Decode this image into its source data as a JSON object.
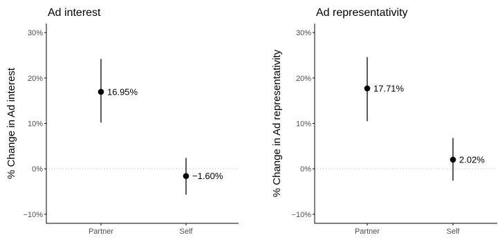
{
  "chart_data": [
    {
      "type": "scatter",
      "title": "Ad interest",
      "xlabel": "",
      "ylabel": "% Change in Ad interest",
      "categories": [
        "Partner",
        "Self"
      ],
      "values": [
        16.95,
        -1.6
      ],
      "lower": [
        10.2,
        -5.7
      ],
      "upper": [
        24.2,
        2.4
      ],
      "point_labels": [
        "16.95%",
        "−1.60%"
      ],
      "ylim": [
        -12,
        32
      ],
      "yticks": [
        -10,
        0,
        10,
        20,
        30
      ],
      "ytick_labels": [
        "−10%",
        "0%",
        "10%",
        "20%",
        "30%"
      ],
      "reference_line": 0,
      "grid": false
    },
    {
      "type": "scatter",
      "title": "Ad representativity",
      "xlabel": "",
      "ylabel": "% Change in Ad representativity",
      "categories": [
        "Partner",
        "Self"
      ],
      "values": [
        17.71,
        2.02
      ],
      "lower": [
        10.5,
        -2.6
      ],
      "upper": [
        24.6,
        6.8
      ],
      "point_labels": [
        "17.71%",
        "2.02%"
      ],
      "ylim": [
        -12,
        32
      ],
      "yticks": [
        -10,
        0,
        10,
        20,
        30
      ],
      "ytick_labels": [
        "−10%",
        "0%",
        "10%",
        "20%",
        "30%"
      ],
      "reference_line": 0,
      "grid": false
    }
  ],
  "colors": {
    "point": "#000000",
    "errorbar": "#000000",
    "axis": "#000000",
    "reference_line": "#b3b3b3",
    "tick_label": "#4d4d4d"
  }
}
